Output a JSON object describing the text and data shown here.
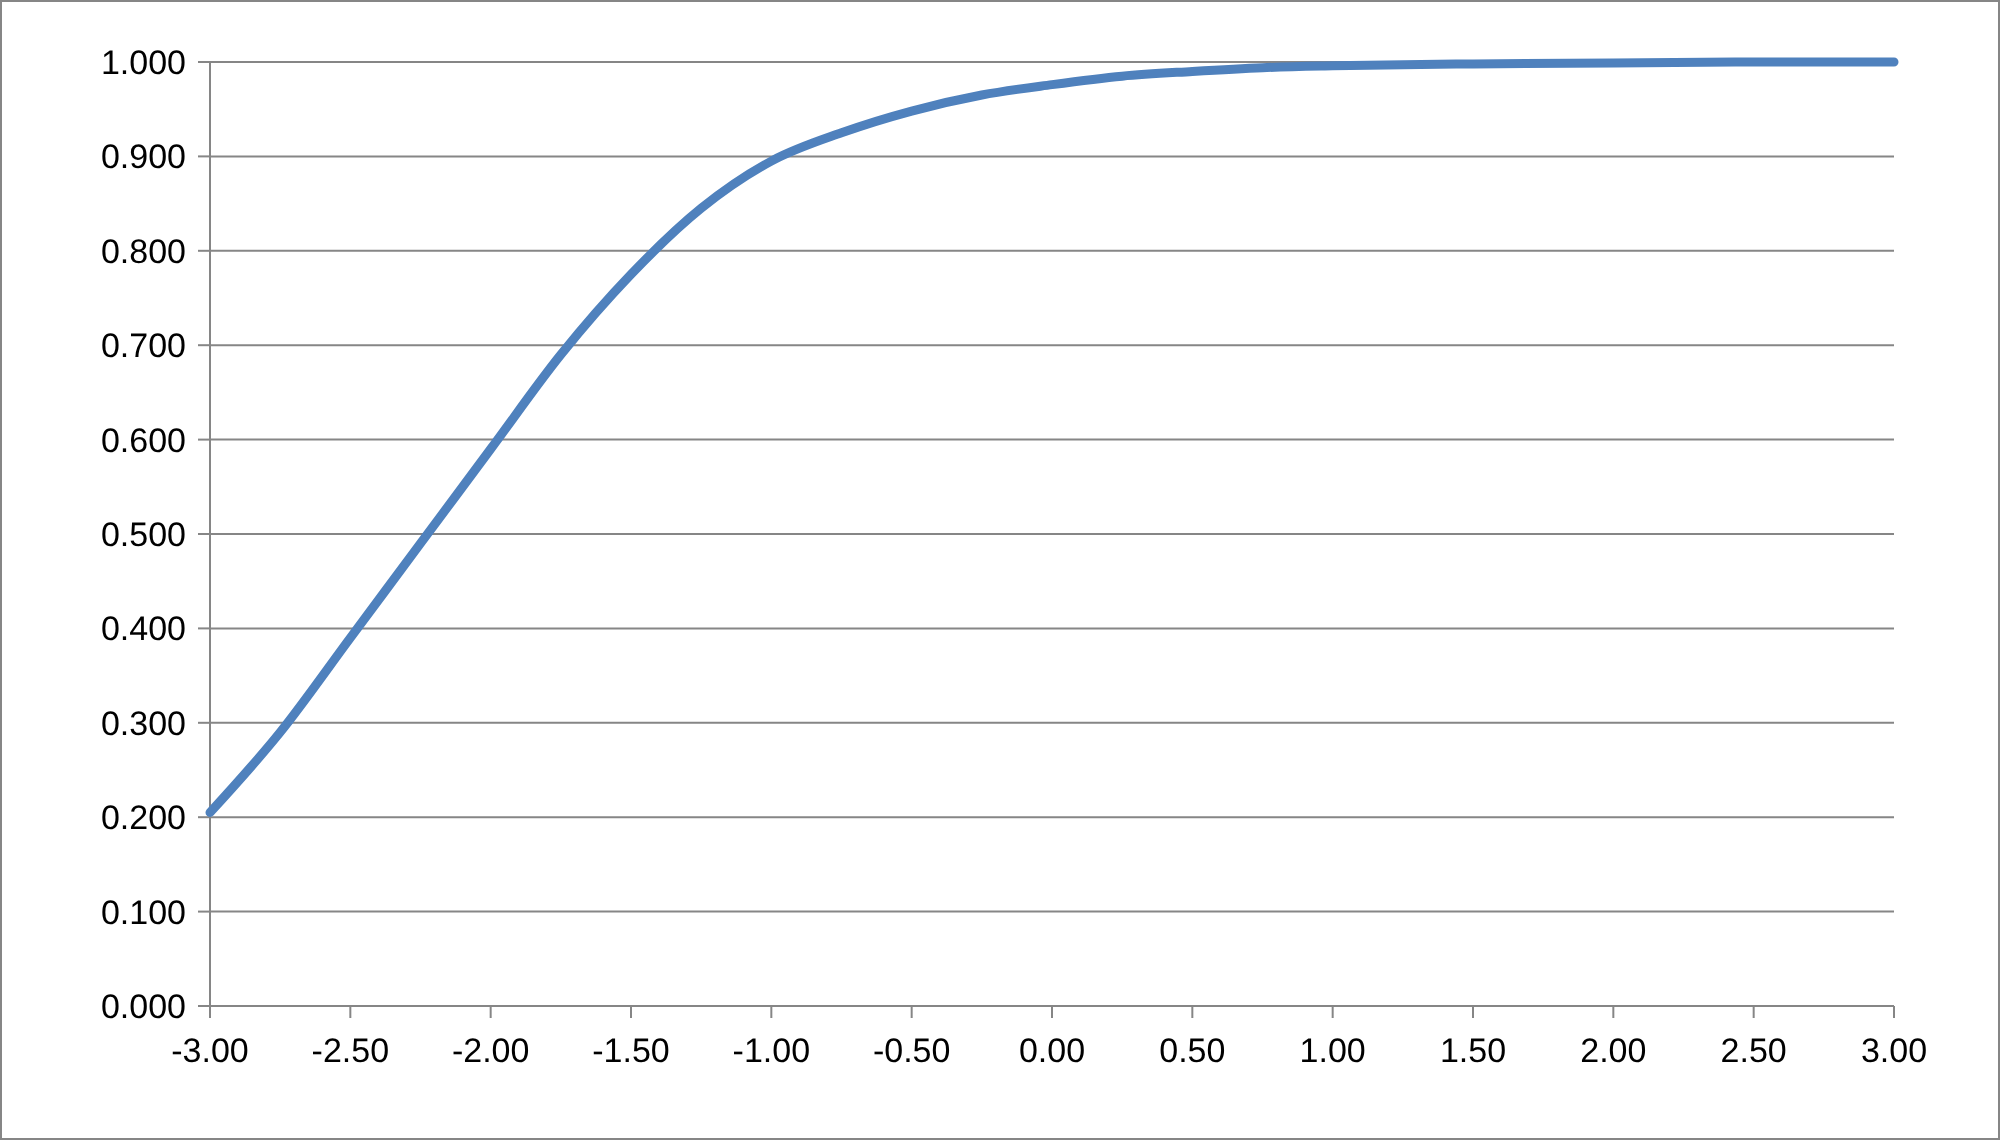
{
  "chart_data": {
    "type": "line",
    "x": [
      -3,
      -2.75,
      -2.5,
      -2.25,
      -2,
      -1.75,
      -1.5,
      -1.25,
      -1,
      -0.75,
      -0.5,
      -0.25,
      0,
      0.25,
      0.5,
      0.75,
      1,
      1.5,
      2,
      2.5,
      3
    ],
    "series": [
      {
        "color": "#4f81bd",
        "values": [
          0.205,
          0.29,
          0.39,
          0.49,
          0.59,
          0.69,
          0.775,
          0.845,
          0.895,
          0.925,
          0.948,
          0.965,
          0.976,
          0.985,
          0.99,
          0.994,
          0.996,
          0.998,
          0.999,
          1.0,
          1.0
        ]
      }
    ],
    "xlim": [
      -3,
      3
    ],
    "ylim": [
      0,
      1
    ],
    "xticks": [
      {
        "value": -3,
        "label": "-3.00"
      },
      {
        "value": -2.5,
        "label": "-2.50"
      },
      {
        "value": -2,
        "label": "-2.00"
      },
      {
        "value": -1.5,
        "label": "-1.50"
      },
      {
        "value": -1,
        "label": "-1.00"
      },
      {
        "value": -0.5,
        "label": "-0.50"
      },
      {
        "value": 0,
        "label": "0.00"
      },
      {
        "value": 0.5,
        "label": "0.50"
      },
      {
        "value": 1,
        "label": "1.00"
      },
      {
        "value": 1.5,
        "label": "1.50"
      },
      {
        "value": 2,
        "label": "2.00"
      },
      {
        "value": 2.5,
        "label": "2.50"
      },
      {
        "value": 3,
        "label": "3.00"
      }
    ],
    "yticks": [
      {
        "value": 0,
        "label": "0.000"
      },
      {
        "value": 0.1,
        "label": "0.100"
      },
      {
        "value": 0.2,
        "label": "0.200"
      },
      {
        "value": 0.3,
        "label": "0.300"
      },
      {
        "value": 0.4,
        "label": "0.400"
      },
      {
        "value": 0.5,
        "label": "0.500"
      },
      {
        "value": 0.6,
        "label": "0.600"
      },
      {
        "value": 0.7,
        "label": "0.700"
      },
      {
        "value": 0.8,
        "label": "0.800"
      },
      {
        "value": 0.9,
        "label": "0.900"
      },
      {
        "value": 1,
        "label": "1.000"
      }
    ],
    "grid": "y",
    "marker": "none",
    "line_style": "solid"
  }
}
